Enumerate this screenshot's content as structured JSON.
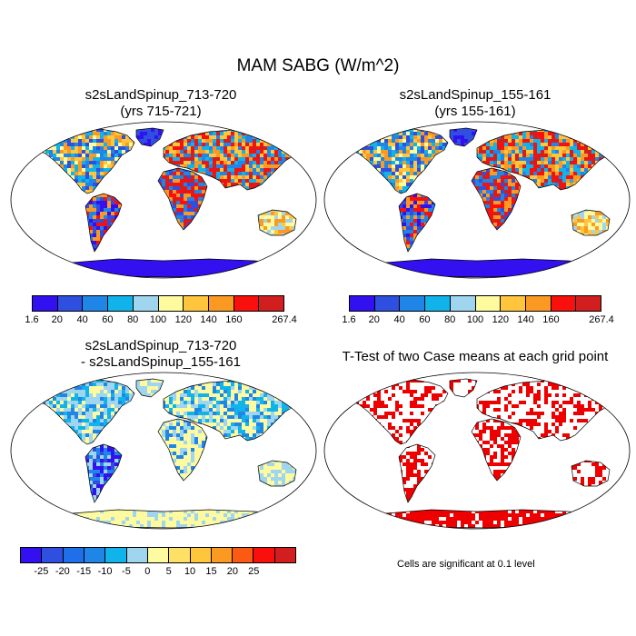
{
  "figure": {
    "title": "MAM SABG (W/m^2)"
  },
  "panels": [
    {
      "id": "case1",
      "title_line1": "s2sLandSpinup_713-720",
      "title_line2": "(yrs 715-721)",
      "style": "field"
    },
    {
      "id": "case2",
      "title_line1": "s2sLandSpinup_155-161",
      "title_line2": "(yrs 155-161)",
      "style": "field"
    },
    {
      "id": "diff",
      "title_line1": "s2sLandSpinup_713-720",
      "title_line2": "- s2sLandSpinup_155-161",
      "style": "diff"
    },
    {
      "id": "ttest",
      "title_line1": "T-Test of two Case means at each grid point",
      "title_line2": "",
      "style": "ttest"
    }
  ],
  "colorbars": {
    "field": {
      "colors": [
        "#3310f0",
        "#2e4fe0",
        "#1f86e8",
        "#10b4ea",
        "#9fd5ee",
        "#fdfaa0",
        "#fec53d",
        "#fb9a22",
        "#f90f0b",
        "#d21e1e"
      ],
      "labels": [
        "1.6",
        "20",
        "40",
        "60",
        "80",
        "100",
        "120",
        "140",
        "160",
        "267.4"
      ]
    },
    "diff": {
      "colors": [
        "#3310f0",
        "#2e4fe0",
        "#1f6fe8",
        "#1f86e8",
        "#10b4ea",
        "#9fd5ee",
        "#fdfaa0",
        "#fee066",
        "#fec53d",
        "#fb9a22",
        "#fb5a12",
        "#f90f0b",
        "#d21e1e"
      ],
      "labels": [
        "-25",
        "-20",
        "-15",
        "-10",
        "-5",
        "0",
        "5",
        "10",
        "15",
        "20",
        "25"
      ]
    }
  },
  "ttest_note": "Cells are significant at 0.1 level",
  "colors": {
    "ocean": "#ffffff",
    "coast": "#000000",
    "ttest_significant": "#ee0000"
  }
}
